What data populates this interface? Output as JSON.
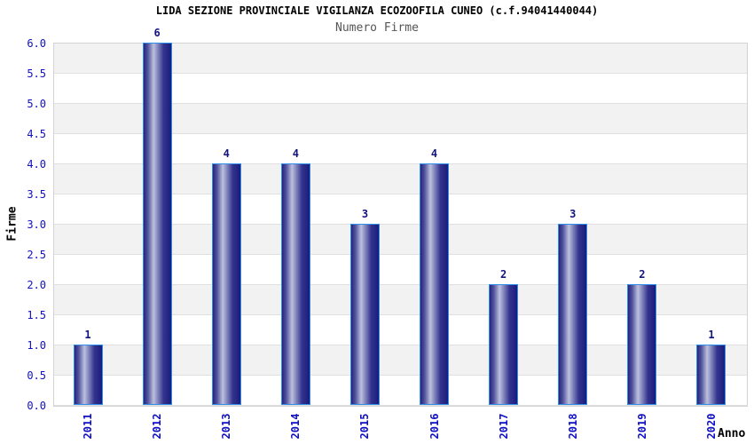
{
  "chart_data": {
    "type": "bar",
    "title": "LIDA SEZIONE PROVINCIALE VIGILANZA ECOZOOFILA CUNEO (c.f.94041440044)",
    "subtitle": "Numero Firme",
    "xlabel": "Anno",
    "ylabel": "Firme",
    "categories": [
      "2011",
      "2012",
      "2013",
      "2014",
      "2015",
      "2016",
      "2017",
      "2018",
      "2019",
      "2020"
    ],
    "values": [
      1,
      6,
      4,
      4,
      3,
      4,
      2,
      3,
      2,
      1
    ],
    "ylim": [
      0,
      6
    ],
    "ytick_step": 0.5,
    "yticks": [
      "0.0",
      "0.5",
      "1.0",
      "1.5",
      "2.0",
      "2.5",
      "3.0",
      "3.5",
      "4.0",
      "4.5",
      "5.0",
      "5.5",
      "6.0"
    ],
    "grid": "horizontal gridlines every 0.5, alternating background bands",
    "legend": "none",
    "bar_value_labels_shown": true,
    "colors": {
      "bar_dark": "#23237f",
      "bar_mid": "#55589f",
      "bar_highlight": "#bcc0de",
      "bar_shadow": "#1b1b7b",
      "bar_border": "#2f8fe8",
      "value_label": "#14147e",
      "tick_label": "#0f0fc4",
      "band_gray": "#f2f2f2",
      "band_white": "#ffffff",
      "gridline": "#e0e0e0",
      "plot_border": "#d3d3d3",
      "title_color": "#000000",
      "subtitle_color": "#555555"
    }
  }
}
